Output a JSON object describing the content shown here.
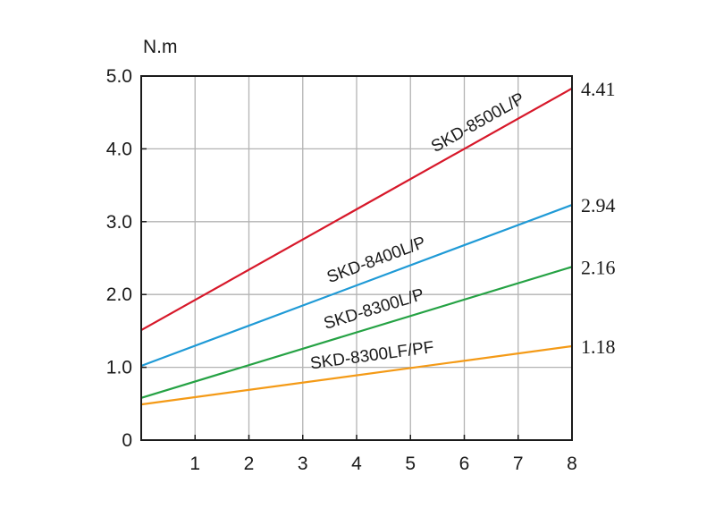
{
  "chart_data": {
    "type": "line",
    "ylabel": "N.m",
    "xlim": [
      0,
      8
    ],
    "ylim": [
      0,
      5.0
    ],
    "x_ticks": [
      "1",
      "2",
      "3",
      "4",
      "5",
      "6",
      "7",
      "8"
    ],
    "y_ticks": [
      "0",
      "1.0",
      "2.0",
      "3.0",
      "4.0",
      "5.0"
    ],
    "grid": true,
    "legend": "none",
    "series": [
      {
        "name": "SKD-8500L/P",
        "color": "#d7182a",
        "x": [
          0,
          8
        ],
        "y": [
          1.51,
          4.83
        ],
        "end_label": "4.41"
      },
      {
        "name": "SKD-8400L/P",
        "color": "#1f9ad6",
        "x": [
          0,
          8
        ],
        "y": [
          1.02,
          3.23
        ],
        "end_label": "2.94"
      },
      {
        "name": "SKD-8300L/P",
        "color": "#25a244",
        "x": [
          0,
          8
        ],
        "y": [
          0.58,
          2.38
        ],
        "end_label": "2.16"
      },
      {
        "name": "SKD-8300LF/PF",
        "color": "#f49a16",
        "x": [
          0,
          8
        ],
        "y": [
          0.49,
          1.29
        ],
        "end_label": "1.18"
      }
    ]
  }
}
